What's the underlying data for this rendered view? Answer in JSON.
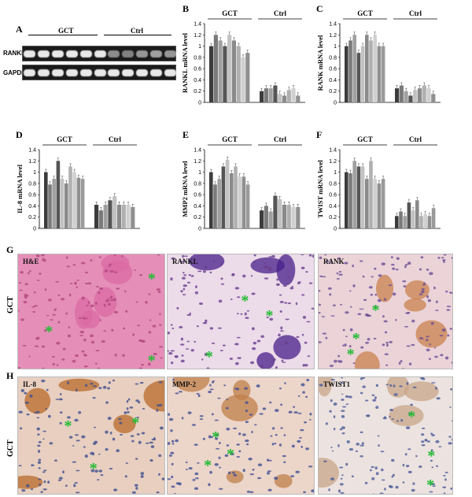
{
  "panels": {
    "A": "A",
    "B": "B",
    "C": "C",
    "D": "D",
    "E": "E",
    "F": "F",
    "G": "G",
    "H": "H"
  },
  "western_blot": {
    "groups": [
      "GCT",
      "Ctrl"
    ],
    "rows": [
      "RANKL",
      "GAPDH"
    ],
    "rankl_intensity": [
      1,
      1,
      1,
      1,
      1,
      1,
      0.55,
      0.5,
      0.6,
      0.65,
      0.6
    ],
    "gapdh_intensity": [
      1,
      1,
      1,
      1,
      1,
      1,
      1,
      1,
      1,
      1,
      1
    ]
  },
  "chart_data": [
    {
      "id": "B",
      "type": "bar",
      "ylabel": "RANKL mRNA level",
      "group_labels": [
        "GCT",
        "Ctrl"
      ],
      "yticks": [
        "0",
        "0.2",
        "0.4",
        "0.6",
        "0.8",
        "1",
        "1.2",
        "1.4"
      ],
      "ylim": [
        0,
        1.4
      ],
      "series": [
        {
          "group": "GCT",
          "values": [
            1.0,
            1.2,
            1.1,
            1.0,
            1.2,
            1.1,
            1.0,
            0.8,
            0.88
          ]
        },
        {
          "group": "Ctrl",
          "values": [
            0.2,
            0.25,
            0.25,
            0.3,
            0.15,
            0.12,
            0.22,
            0.25,
            0.12
          ]
        }
      ]
    },
    {
      "id": "C",
      "type": "bar",
      "ylabel": "RANK mRNA level",
      "group_labels": [
        "GCT",
        "Ctrl"
      ],
      "yticks": [
        "0",
        "0.2",
        "0.4",
        "0.6",
        "0.8",
        "1",
        "1.2",
        "1.4"
      ],
      "ylim": [
        0,
        1.4
      ],
      "series": [
        {
          "group": "GCT",
          "values": [
            1.0,
            1.1,
            1.2,
            0.88,
            1.0,
            1.2,
            1.1,
            1.2,
            1.0,
            1.0
          ]
        },
        {
          "group": "Ctrl",
          "values": [
            0.25,
            0.3,
            0.2,
            0.12,
            0.22,
            0.25,
            0.3,
            0.25,
            0.15
          ]
        }
      ]
    },
    {
      "id": "D",
      "type": "bar",
      "ylabel": "IL-8 mRNA level",
      "group_labels": [
        "GCT",
        "Ctrl"
      ],
      "yticks": [
        "0",
        "0.2",
        "0.4",
        "0.6",
        "0.8",
        "1",
        "1.2",
        "1.4"
      ],
      "ylim": [
        0,
        1.4
      ],
      "series": [
        {
          "group": "GCT",
          "values": [
            1.0,
            0.78,
            0.88,
            1.2,
            0.88,
            0.8,
            1.1,
            1.0,
            0.9,
            0.88
          ]
        },
        {
          "group": "Ctrl",
          "values": [
            0.42,
            0.32,
            0.42,
            0.5,
            0.57,
            0.42,
            0.42,
            0.42,
            0.38
          ]
        }
      ]
    },
    {
      "id": "E",
      "type": "bar",
      "ylabel": "MMP2 mRNA level",
      "group_labels": [
        "GCT",
        "Ctrl"
      ],
      "yticks": [
        "0",
        "0.2",
        "0.4",
        "0.6",
        "0.8",
        "1",
        "1.2",
        "1.4"
      ],
      "ylim": [
        0,
        1.4
      ],
      "series": [
        {
          "group": "GCT",
          "values": [
            1.0,
            0.78,
            0.88,
            1.1,
            1.22,
            0.98,
            1.1,
            0.92,
            0.92,
            0.78
          ]
        },
        {
          "group": "Ctrl",
          "values": [
            0.32,
            0.4,
            0.3,
            0.58,
            0.52,
            0.42,
            0.42,
            0.38,
            0.38
          ]
        }
      ]
    },
    {
      "id": "F",
      "type": "bar",
      "ylabel": "TWIST mRNA level",
      "group_labels": [
        "GCT",
        "Ctrl"
      ],
      "yticks": [
        "0",
        "0.2",
        "0.4",
        "0.6",
        "0.8",
        "1",
        "1.2",
        "1.4"
      ],
      "ylim": [
        0,
        1.4
      ],
      "series": [
        {
          "group": "GCT",
          "values": [
            1.0,
            0.98,
            1.2,
            1.1,
            1.1,
            0.88,
            1.2,
            0.88,
            0.8,
            0.88
          ]
        },
        {
          "group": "Ctrl",
          "values": [
            0.22,
            0.3,
            0.22,
            0.46,
            0.32,
            0.5,
            0.22,
            0.25,
            0.22,
            0.36
          ]
        }
      ]
    }
  ],
  "bar_colors": [
    "#3c3c3c",
    "#7a7a7a",
    "#a0a0a0",
    "#555555",
    "#c2c2c2",
    "#8a8a8a",
    "#b0b0b0",
    "#d0d0d0",
    "#909090",
    "#9a9a9a"
  ],
  "histology": {
    "row_label": "GCT",
    "G": [
      {
        "label": "H&E",
        "bg": "#e58fb8",
        "cell": "#b1477e",
        "stain": "#d96aa3"
      },
      {
        "label": "RANKL",
        "bg": "#ecdbe9",
        "cell": "#6a3f8e",
        "stain": "#4a1f8a"
      },
      {
        "label": "RANK",
        "bg": "#ebd3d8",
        "cell": "#6d4f96",
        "stain": "#c9824d"
      }
    ],
    "H": [
      {
        "label": "IL-8",
        "bg": "#e8cfc0",
        "cell": "#3f4f8f",
        "stain": "#b86a2a"
      },
      {
        "label": "MMP-2",
        "bg": "#ecd5c9",
        "cell": "#3e4f95",
        "stain": "#c07f4a"
      },
      {
        "label": "TWIST1",
        "bg": "#ece3e0",
        "cell": "#4e5c9a",
        "stain": "#c9a58a"
      }
    ],
    "asterisk": "*"
  }
}
